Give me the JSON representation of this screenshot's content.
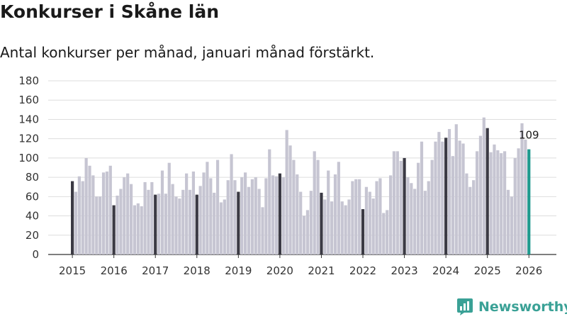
{
  "header": {
    "title": "Konkurser i Skåne län",
    "subtitle": "Antal konkurser per månad, januari månad förstärkt."
  },
  "brand": {
    "name": "Newsworthy",
    "color": "#3aa196"
  },
  "colors": {
    "regular": "#c6c5d2",
    "january": "#3b3a44",
    "latest": "#1f9a8e",
    "grid": "#dedede"
  },
  "chart_data": {
    "type": "bar",
    "title": "Konkurser i Skåne län",
    "subtitle": "Antal konkurser per månad, januari månad förstärkt.",
    "xlabel": "",
    "ylabel": "",
    "ylim": [
      0,
      180
    ],
    "yticks": [
      "0",
      "20",
      "40",
      "60",
      "80",
      "100",
      "120",
      "140",
      "160",
      "180"
    ],
    "start": "2015-01",
    "xticks": [
      "2015",
      "2016",
      "2017",
      "2018",
      "2019",
      "2020",
      "2021",
      "2022",
      "2023",
      "2024",
      "2025",
      "2026"
    ],
    "highlight": "january",
    "annotations": [
      {
        "index": 132,
        "text": "109"
      }
    ],
    "values": [
      76,
      65,
      81,
      76,
      100,
      92,
      82,
      60,
      60,
      85,
      86,
      92,
      51,
      61,
      68,
      80,
      84,
      73,
      51,
      53,
      50,
      75,
      67,
      75,
      62,
      63,
      87,
      63,
      95,
      73,
      60,
      58,
      67,
      84,
      67,
      86,
      62,
      71,
      85,
      96,
      79,
      64,
      98,
      54,
      57,
      77,
      104,
      77,
      65,
      80,
      85,
      70,
      78,
      80,
      68,
      49,
      79,
      109,
      82,
      81,
      84,
      80,
      129,
      113,
      98,
      83,
      65,
      40,
      46,
      66,
      107,
      98,
      64,
      57,
      87,
      55,
      83,
      96,
      55,
      51,
      57,
      76,
      78,
      78,
      47,
      70,
      65,
      58,
      76,
      79,
      43,
      46,
      82,
      107,
      107,
      97,
      100,
      80,
      74,
      68,
      95,
      117,
      66,
      76,
      98,
      117,
      127,
      117,
      121,
      130,
      102,
      135,
      118,
      115,
      84,
      70,
      77,
      107,
      123,
      142,
      131,
      106,
      114,
      108,
      105,
      107,
      67,
      60,
      100,
      110,
      136,
      119,
      109
    ]
  }
}
